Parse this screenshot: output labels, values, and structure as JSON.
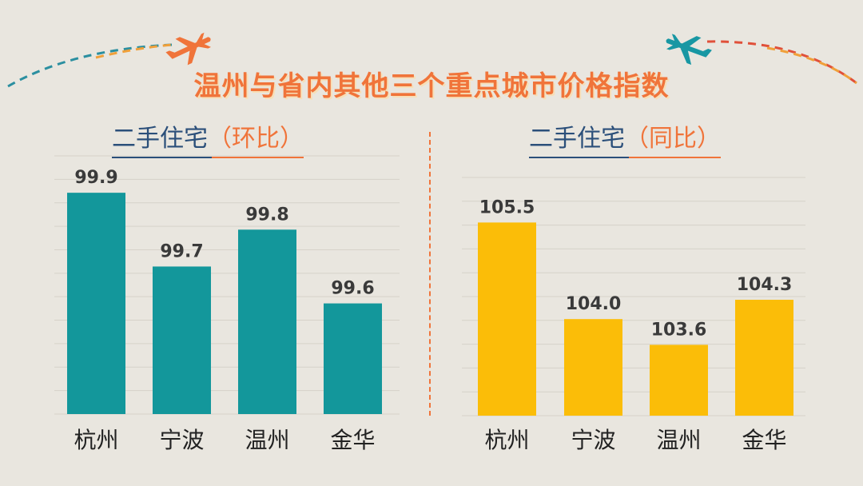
{
  "title": "温州与省内其他三个重点城市价格指数",
  "colors": {
    "title": "#f0743a",
    "subtitle_main": "#2b4f7a",
    "subtitle_paren": "#f0743a",
    "bar_left": "#13979b",
    "bar_right": "#fbbd08",
    "plane_left": "#f0743a",
    "plane_right": "#1897a3"
  },
  "charts": [
    {
      "subtitle_main": "二手住宅",
      "subtitle_paren": "（环比）"
    },
    {
      "subtitle_main": "二手住宅",
      "subtitle_paren": "（同比）"
    }
  ],
  "chart_data": [
    {
      "type": "bar",
      "title": "二手住宅（环比）",
      "categories": [
        "杭州",
        "宁波",
        "温州",
        "金华"
      ],
      "values": [
        99.9,
        99.7,
        99.8,
        99.6
      ],
      "value_labels": [
        "99.9",
        "99.7",
        "99.8",
        "99.6"
      ],
      "ylim": [
        99.3,
        100.0
      ],
      "grid": true
    },
    {
      "type": "bar",
      "title": "二手住宅（同比）",
      "categories": [
        "杭州",
        "宁波",
        "温州",
        "金华"
      ],
      "values": [
        105.5,
        104.0,
        103.6,
        104.3
      ],
      "value_labels": [
        "105.5",
        "104.0",
        "103.6",
        "104.3"
      ],
      "ylim": [
        102.5,
        106.2
      ],
      "grid": true
    }
  ]
}
